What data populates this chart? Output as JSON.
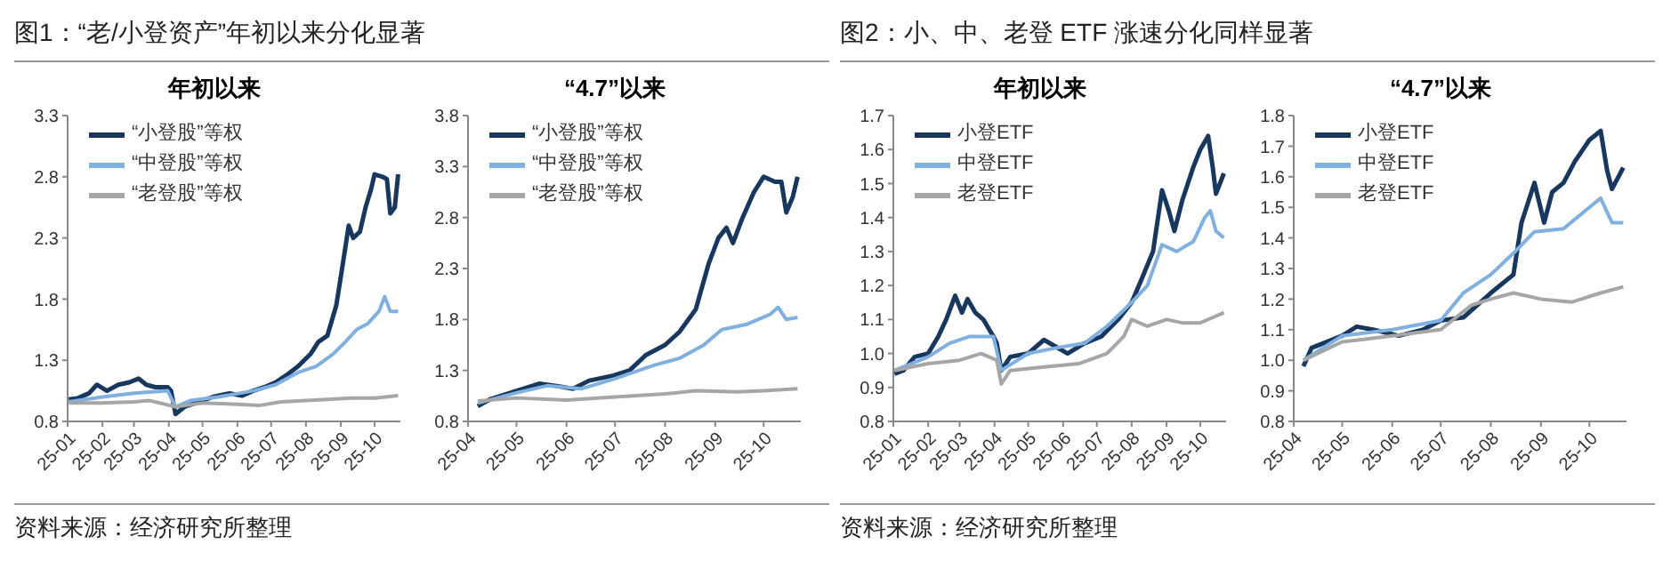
{
  "chart_data": [
    {
      "type": "line",
      "title": "年初以来",
      "annotations": [
        "图1：“老/小登资产”年初以来分化显著",
        "资料来源：经济研究所整理"
      ],
      "legend": "top left",
      "xlim": [
        "--01-01",
        "--10-24"
      ],
      "xticks": [
        {
          "value": "--01-01",
          "label": "25-01"
        },
        {
          "value": "--02-01",
          "label": "25-02"
        },
        {
          "value": "--03-01",
          "label": "25-03"
        },
        {
          "value": "--04-01",
          "label": "25-04"
        },
        {
          "value": "--05-01",
          "label": "25-05"
        },
        {
          "value": "--06-01",
          "label": "25-06"
        },
        {
          "value": "--07-01",
          "label": "25-07"
        },
        {
          "value": "--08-01",
          "label": "25-08"
        },
        {
          "value": "--09-01",
          "label": "25-09"
        },
        {
          "value": "--10-01",
          "label": "25-10"
        }
      ],
      "ylim": [
        0.8,
        3.3
      ],
      "yticks": [
        0.8,
        1.3,
        1.8,
        2.3,
        2.8,
        3.3
      ],
      "series": [
        {
          "name": "“小登股”等权",
          "color": "#17375e",
          "x": [
            "--01-02",
            "--01-10",
            "--01-20",
            "--01-27",
            "--02-05",
            "--02-15",
            "--02-25",
            "--03-05",
            "--03-12",
            "--03-20",
            "--03-31",
            "--04-03",
            "--04-07",
            "--04-15",
            "--04-25",
            "--05-10",
            "--05-25",
            "--06-05",
            "--06-15",
            "--06-25",
            "--07-05",
            "--07-15",
            "--07-25",
            "--08-05",
            "--08-12",
            "--08-20",
            "--08-28",
            "--09-03",
            "--09-08",
            "--09-12",
            "--09-18",
            "--09-23",
            "--09-28",
            "--10-01",
            "--10-08",
            "--10-12",
            "--10-15",
            "--10-19",
            "--10-22"
          ],
          "values": [
            0.98,
            0.99,
            1.03,
            1.1,
            1.05,
            1.1,
            1.12,
            1.15,
            1.1,
            1.08,
            1.08,
            1.05,
            0.86,
            0.92,
            0.95,
            1.0,
            1.03,
            1.01,
            1.05,
            1.08,
            1.12,
            1.18,
            1.25,
            1.35,
            1.45,
            1.5,
            1.75,
            2.1,
            2.4,
            2.3,
            2.35,
            2.55,
            2.7,
            2.82,
            2.8,
            2.78,
            2.5,
            2.55,
            2.82
          ]
        },
        {
          "name": "“中登股”等权",
          "color": "#7fb0e0",
          "x": [
            "--01-02",
            "--02-01",
            "--03-01",
            "--03-31",
            "--04-07",
            "--04-20",
            "--05-15",
            "--06-15",
            "--07-05",
            "--07-25",
            "--08-10",
            "--08-25",
            "--09-05",
            "--09-15",
            "--09-25",
            "--10-05",
            "--10-10",
            "--10-15",
            "--10-22"
          ],
          "values": [
            0.96,
            1.0,
            1.03,
            1.05,
            0.92,
            0.97,
            1.0,
            1.05,
            1.1,
            1.2,
            1.25,
            1.35,
            1.45,
            1.55,
            1.6,
            1.7,
            1.82,
            1.7,
            1.7
          ]
        },
        {
          "name": "“老登股”等权",
          "color": "#a6a6a6",
          "x": [
            "--01-02",
            "--02-01",
            "--03-01",
            "--03-15",
            "--04-07",
            "--05-01",
            "--06-01",
            "--06-20",
            "--07-10",
            "--08-01",
            "--08-20",
            "--09-10",
            "--10-01",
            "--10-22"
          ],
          "values": [
            0.95,
            0.95,
            0.96,
            0.97,
            0.92,
            0.95,
            0.94,
            0.93,
            0.96,
            0.97,
            0.98,
            0.99,
            0.99,
            1.01
          ]
        }
      ]
    },
    {
      "type": "line",
      "title": "“4.7”以来",
      "legend": "top left",
      "xlim": [
        "--04-01",
        "--10-24"
      ],
      "xticks": [
        {
          "value": "--04-01",
          "label": "25-04"
        },
        {
          "value": "--05-01",
          "label": "25-05"
        },
        {
          "value": "--06-01",
          "label": "25-06"
        },
        {
          "value": "--07-01",
          "label": "25-07"
        },
        {
          "value": "--08-01",
          "label": "25-08"
        },
        {
          "value": "--09-01",
          "label": "25-09"
        },
        {
          "value": "--10-01",
          "label": "25-10"
        }
      ],
      "ylim": [
        0.8,
        3.8
      ],
      "yticks": [
        0.8,
        1.3,
        1.8,
        2.3,
        2.8,
        3.3,
        3.8
      ],
      "series": [
        {
          "name": "“小登股”等权",
          "color": "#17375e",
          "x": [
            "--04-07",
            "--04-15",
            "--05-01",
            "--05-15",
            "--05-25",
            "--06-05",
            "--06-15",
            "--06-30",
            "--07-10",
            "--07-20",
            "--08-01",
            "--08-10",
            "--08-20",
            "--08-28",
            "--09-03",
            "--09-08",
            "--09-12",
            "--09-18",
            "--09-25",
            "--10-01",
            "--10-08",
            "--10-12",
            "--10-15",
            "--10-19",
            "--10-22"
          ],
          "values": [
            0.95,
            1.02,
            1.1,
            1.17,
            1.15,
            1.12,
            1.2,
            1.25,
            1.3,
            1.45,
            1.55,
            1.68,
            1.9,
            2.35,
            2.6,
            2.7,
            2.55,
            2.8,
            3.05,
            3.2,
            3.15,
            3.15,
            2.85,
            3.0,
            3.2
          ]
        },
        {
          "name": "“中登股”等权",
          "color": "#7fb0e0",
          "x": [
            "--04-07",
            "--05-01",
            "--05-20",
            "--06-10",
            "--07-01",
            "--07-25",
            "--08-10",
            "--08-25",
            "--09-05",
            "--09-20",
            "--10-05",
            "--10-10",
            "--10-15",
            "--10-22"
          ],
          "values": [
            0.98,
            1.08,
            1.15,
            1.12,
            1.22,
            1.35,
            1.42,
            1.55,
            1.7,
            1.75,
            1.85,
            1.92,
            1.8,
            1.82
          ]
        },
        {
          "name": "“老登股”等权",
          "color": "#a6a6a6",
          "x": [
            "--04-07",
            "--05-01",
            "--06-01",
            "--07-01",
            "--08-01",
            "--08-20",
            "--09-15",
            "--10-01",
            "--10-22"
          ],
          "values": [
            1.0,
            1.03,
            1.01,
            1.04,
            1.07,
            1.1,
            1.09,
            1.1,
            1.12
          ]
        }
      ]
    },
    {
      "type": "line",
      "title": "年初以来",
      "annotations": [
        "图2：小、中、老登 ETF 涨速分化同样显著",
        "资料来源：经济研究所整理"
      ],
      "legend": "top left",
      "xlim": [
        "--01-01",
        "--10-24"
      ],
      "xticks": [
        {
          "value": "--01-01",
          "label": "25-01"
        },
        {
          "value": "--02-01",
          "label": "25-02"
        },
        {
          "value": "--03-01",
          "label": "25-03"
        },
        {
          "value": "--04-01",
          "label": "25-04"
        },
        {
          "value": "--05-01",
          "label": "25-05"
        },
        {
          "value": "--06-01",
          "label": "25-06"
        },
        {
          "value": "--07-01",
          "label": "25-07"
        },
        {
          "value": "--08-01",
          "label": "25-08"
        },
        {
          "value": "--09-01",
          "label": "25-09"
        },
        {
          "value": "--10-01",
          "label": "25-10"
        }
      ],
      "ylim": [
        0.8,
        1.7
      ],
      "yticks": [
        0.8,
        0.9,
        {
          "value": 1,
          "label": "1.0"
        },
        1.1,
        1.2,
        1.3,
        1.4,
        1.5,
        1.6,
        1.7
      ],
      "series": [
        {
          "name": "小登ETF",
          "color": "#17375e",
          "x": [
            "--01-02",
            "--01-10",
            "--01-20",
            "--02-01",
            "--02-10",
            "--02-17",
            "--02-25",
            "--03-03",
            "--03-08",
            "--03-15",
            "--03-22",
            "--03-31",
            "--04-03",
            "--04-07",
            "--04-15",
            "--05-01",
            "--05-15",
            "--06-05",
            "--06-20",
            "--07-05",
            "--07-20",
            "--08-01",
            "--08-10",
            "--08-20",
            "--08-28",
            "--09-03",
            "--09-08",
            "--09-15",
            "--09-25",
            "--10-01",
            "--10-08",
            "--10-12",
            "--10-15",
            "--10-22"
          ],
          "values": [
            0.94,
            0.95,
            0.99,
            1.0,
            1.05,
            1.1,
            1.17,
            1.12,
            1.16,
            1.12,
            1.1,
            1.05,
            1.03,
            0.95,
            0.99,
            1.0,
            1.04,
            1.0,
            1.03,
            1.05,
            1.1,
            1.15,
            1.22,
            1.3,
            1.48,
            1.42,
            1.36,
            1.45,
            1.55,
            1.6,
            1.64,
            1.55,
            1.47,
            1.53
          ]
        },
        {
          "name": "中登ETF",
          "color": "#7fb0e0",
          "x": [
            "--01-02",
            "--02-01",
            "--02-20",
            "--03-10",
            "--03-31",
            "--04-07",
            "--05-01",
            "--06-01",
            "--06-20",
            "--07-10",
            "--08-01",
            "--08-15",
            "--08-28",
            "--09-10",
            "--09-25",
            "--10-05",
            "--10-10",
            "--10-15",
            "--10-22"
          ],
          "values": [
            0.95,
            0.99,
            1.03,
            1.05,
            1.05,
            0.95,
            1.0,
            1.02,
            1.03,
            1.08,
            1.15,
            1.2,
            1.32,
            1.3,
            1.33,
            1.4,
            1.42,
            1.36,
            1.34
          ]
        },
        {
          "name": "老登ETF",
          "color": "#a6a6a6",
          "x": [
            "--01-02",
            "--02-01",
            "--03-01",
            "--03-20",
            "--04-03",
            "--04-07",
            "--04-15",
            "--05-15",
            "--06-15",
            "--07-10",
            "--07-25",
            "--08-01",
            "--08-15",
            "--09-01",
            "--09-15",
            "--10-01",
            "--10-15",
            "--10-22"
          ],
          "values": [
            0.95,
            0.97,
            0.98,
            1.0,
            0.98,
            0.91,
            0.95,
            0.96,
            0.97,
            1.0,
            1.05,
            1.1,
            1.08,
            1.1,
            1.09,
            1.09,
            1.11,
            1.12
          ]
        }
      ]
    },
    {
      "type": "line",
      "title": "“4.7”以来",
      "legend": "top left",
      "xlim": [
        "--04-01",
        "--10-24"
      ],
      "xticks": [
        {
          "value": "--04-01",
          "label": "25-04"
        },
        {
          "value": "--05-01",
          "label": "25-05"
        },
        {
          "value": "--06-01",
          "label": "25-06"
        },
        {
          "value": "--07-01",
          "label": "25-07"
        },
        {
          "value": "--08-01",
          "label": "25-08"
        },
        {
          "value": "--09-01",
          "label": "25-09"
        },
        {
          "value": "--10-01",
          "label": "25-10"
        }
      ],
      "ylim": [
        0.8,
        1.8
      ],
      "yticks": [
        0.8,
        0.9,
        {
          "value": 1,
          "label": "1.0"
        },
        1.1,
        1.2,
        1.3,
        1.4,
        1.5,
        1.6,
        1.7,
        1.8
      ],
      "series": [
        {
          "name": "小登ETF",
          "color": "#17375e",
          "x": [
            "--04-07",
            "--04-12",
            "--05-01",
            "--05-10",
            "--05-20",
            "--06-05",
            "--06-20",
            "--07-01",
            "--07-15",
            "--08-01",
            "--08-15",
            "--08-20",
            "--08-28",
            "--09-03",
            "--09-08",
            "--09-15",
            "--09-22",
            "--10-01",
            "--10-08",
            "--10-12",
            "--10-15",
            "--10-22"
          ],
          "values": [
            0.98,
            1.04,
            1.08,
            1.11,
            1.1,
            1.08,
            1.1,
            1.13,
            1.14,
            1.22,
            1.28,
            1.45,
            1.58,
            1.45,
            1.55,
            1.58,
            1.65,
            1.72,
            1.75,
            1.62,
            1.56,
            1.63
          ]
        },
        {
          "name": "中登ETF",
          "color": "#7fb0e0",
          "x": [
            "--04-07",
            "--05-01",
            "--06-01",
            "--07-01",
            "--07-15",
            "--08-01",
            "--08-15",
            "--08-28",
            "--09-15",
            "--10-01",
            "--10-08",
            "--10-15",
            "--10-22"
          ],
          "values": [
            1.0,
            1.08,
            1.1,
            1.13,
            1.22,
            1.28,
            1.35,
            1.42,
            1.43,
            1.5,
            1.53,
            1.45,
            1.45
          ]
        },
        {
          "name": "老登ETF",
          "color": "#a6a6a6",
          "x": [
            "--04-07",
            "--05-01",
            "--06-01",
            "--07-01",
            "--07-20",
            "--08-01",
            "--08-15",
            "--09-01",
            "--09-20",
            "--10-08",
            "--10-22"
          ],
          "values": [
            1.0,
            1.06,
            1.08,
            1.1,
            1.18,
            1.2,
            1.22,
            1.2,
            1.19,
            1.22,
            1.24
          ]
        }
      ]
    }
  ]
}
